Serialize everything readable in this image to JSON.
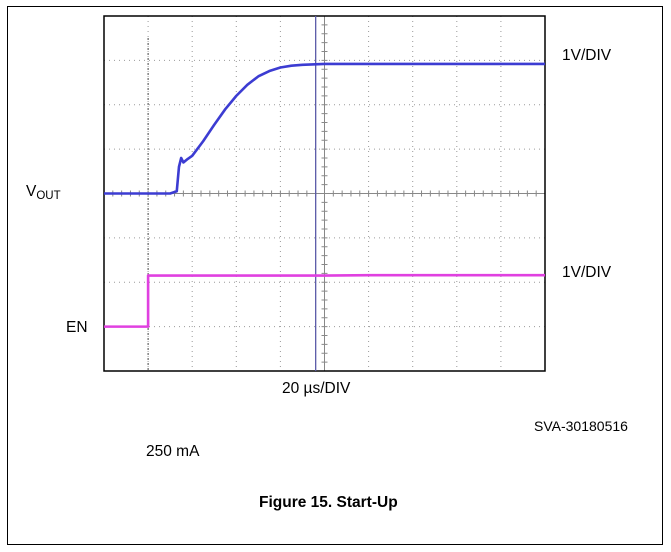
{
  "chart_data": {
    "type": "line",
    "title": "",
    "xlabel": "20 µs/DIV",
    "x_unit": "µs",
    "x_divisions": 10,
    "y_divisions": 8,
    "x": [
      0,
      10,
      20,
      30,
      33,
      34,
      35,
      36,
      38,
      40,
      45,
      50,
      55,
      60,
      65,
      70,
      75,
      80,
      85,
      90,
      100,
      120,
      140,
      160,
      180,
      200
    ],
    "series": [
      {
        "name": "VOUT",
        "label": "V",
        "label_sub": "OUT",
        "scale": "1V/DIV",
        "color": "#3c3cd2",
        "baseline_div": 4.0,
        "values": [
          0.0,
          0.0,
          0.0,
          0.0,
          0.05,
          0.6,
          0.8,
          0.7,
          0.78,
          0.85,
          1.18,
          1.55,
          1.9,
          2.2,
          2.45,
          2.64,
          2.76,
          2.84,
          2.88,
          2.9,
          2.92,
          2.92,
          2.92,
          2.92,
          2.92,
          2.92
        ]
      },
      {
        "name": "EN",
        "label": "EN",
        "scale": "1V/DIV",
        "color": "#e040e0",
        "baseline_div": 1.0,
        "values": [
          0.0,
          0.0,
          1.15,
          1.15,
          1.15,
          1.15,
          1.15,
          1.15,
          1.15,
          1.15,
          1.15,
          1.15,
          1.15,
          1.15,
          1.15,
          1.15,
          1.15,
          1.15,
          1.15,
          1.15,
          1.15,
          1.16,
          1.16,
          1.16,
          1.16,
          1.16
        ],
        "step_at": 20
      }
    ],
    "markers": {
      "trigger_x": 20,
      "cursor_x": 96
    },
    "grid": true
  },
  "figure": {
    "code": "SVA-30180516",
    "condition": "250 mA",
    "caption": "Figure 15. Start-Up"
  }
}
